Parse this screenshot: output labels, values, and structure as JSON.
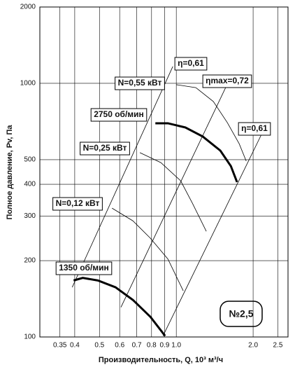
{
  "chart_data": {
    "type": "line",
    "xlabel": "Производительность, Q, 10³ м³/ч",
    "ylabel": "Полное давление, Pv, Па",
    "annotation": "№2,5",
    "log_x": true,
    "log_y": true,
    "grid": true,
    "xlim": [
      0.292,
      2.74
    ],
    "ylim": [
      100,
      2000
    ],
    "xticks": [
      0.35,
      0.4,
      0.5,
      0.6,
      0.7,
      0.8,
      0.9,
      {
        "value": 1,
        "label": "1.0"
      },
      {
        "value": 2,
        "label": "2.0"
      },
      2.5
    ],
    "yticks": [
      100,
      200,
      300,
      400,
      500,
      1000,
      2000
    ],
    "series": [
      {
        "name": "2750 об/мин",
        "color": "#000",
        "width": 3,
        "x": [
          0.828,
          0.927,
          1.085,
          1.27,
          1.488,
          1.636,
          1.73
        ],
        "values": [
          696,
          696,
          670,
          617,
          543,
          472,
          408
        ]
      },
      {
        "name": "1350 об/мин",
        "color": "#000",
        "width": 3,
        "x": [
          0.396,
          0.43,
          0.493,
          0.578,
          0.676,
          0.792,
          0.904
        ],
        "values": [
          167,
          171,
          167,
          157,
          140,
          120,
          101
        ]
      },
      {
        "name": "N=0,55 кВт",
        "color": "#000",
        "width": 0.8,
        "x": [
          1.0,
          1.193,
          1.397,
          1.585,
          1.764,
          1.879
        ],
        "values": [
          988,
          962,
          848,
          700,
          578,
          494
        ]
      },
      {
        "name": "N=0,25 кВт",
        "color": "#000",
        "width": 0.8,
        "x": [
          0.72,
          0.87,
          1.04,
          1.156,
          1.311
        ],
        "values": [
          533,
          487,
          413,
          337,
          261
        ]
      },
      {
        "name": "N=0,12 кВт",
        "color": "#000",
        "width": 0.8,
        "x": [
          0.56,
          0.676,
          0.792,
          0.927,
          1.065
        ],
        "values": [
          322,
          287,
          245,
          203,
          152
        ]
      },
      {
        "name": "η=0,61",
        "color": "#000",
        "width": 0.8,
        "x": [
          0.391,
          0.969
        ],
        "values": [
          157,
          1165
        ]
      },
      {
        "name": "ηmax=0,72",
        "color": "#000",
        "width": 0.8,
        "x": [
          0.607,
          1.585
        ],
        "values": [
          131,
          994
        ]
      },
      {
        "name": "η=0,61",
        "color": "#000",
        "width": 0.8,
        "x": [
          0.887,
          2.17
        ],
        "values": [
          101,
          637
        ]
      }
    ]
  }
}
